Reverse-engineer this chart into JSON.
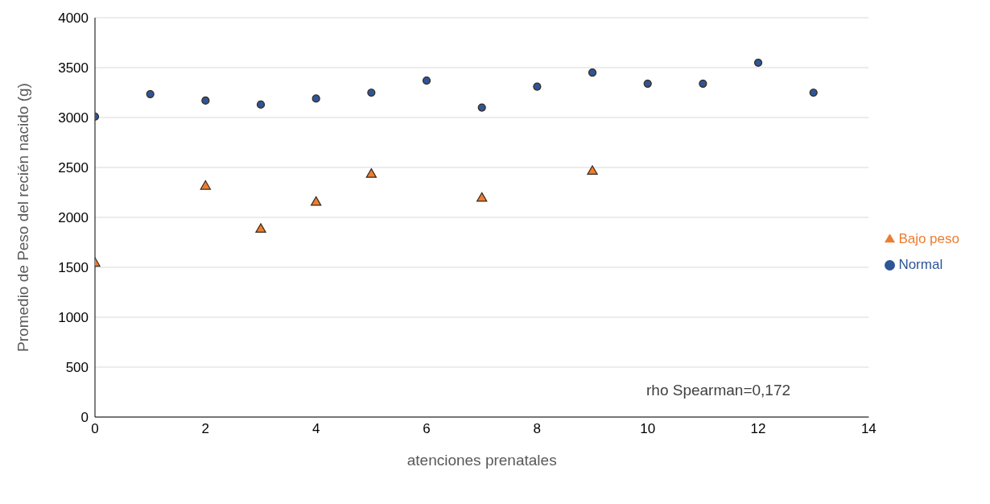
{
  "chart_data": {
    "type": "scatter",
    "xlabel": "atenciones prenatales",
    "ylabel": "Promedio de Peso del recién nacido (g)",
    "xlim": [
      0,
      14
    ],
    "xticks": [
      0,
      2,
      4,
      6,
      8,
      10,
      12,
      14
    ],
    "ylim": [
      0,
      4000
    ],
    "yticks": [
      0,
      500,
      1000,
      1500,
      2000,
      2500,
      3000,
      3500,
      4000
    ],
    "grid": "y",
    "legend": "right",
    "annotations": [
      "rho Spearman=0,172"
    ],
    "series": [
      {
        "name": "Bajo peso",
        "color": "#ed7d31",
        "marker": "triangle",
        "x": [
          0,
          2,
          3,
          4,
          5,
          7,
          9
        ],
        "values": [
          1540,
          2310,
          1880,
          2150,
          2430,
          2190,
          2460
        ]
      },
      {
        "name": "Normal",
        "color": "#2e5597",
        "marker": "circle",
        "x": [
          0,
          1,
          2,
          3,
          4,
          5,
          6,
          7,
          8,
          9,
          10,
          11,
          12,
          13
        ],
        "values": [
          3010,
          3235,
          3170,
          3130,
          3190,
          3250,
          3370,
          3100,
          3310,
          3450,
          3340,
          3340,
          3550,
          3250
        ]
      }
    ]
  }
}
